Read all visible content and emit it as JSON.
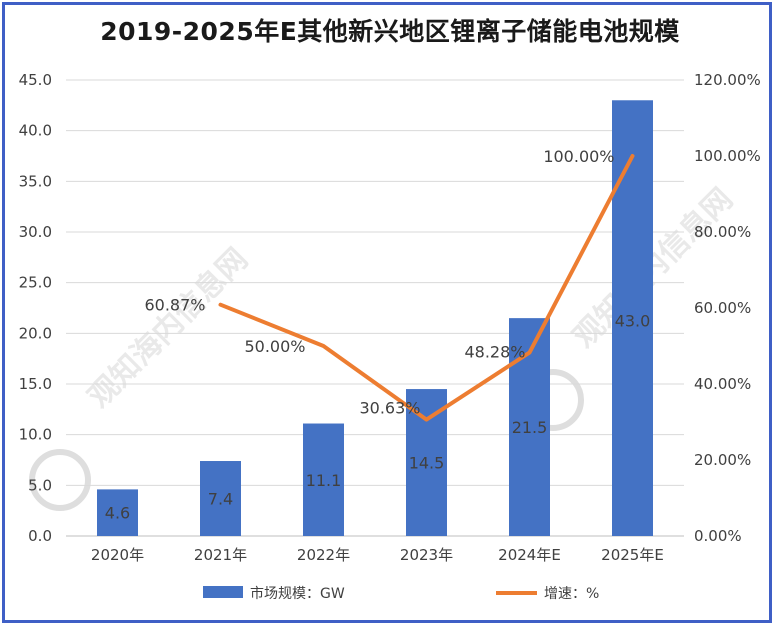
{
  "chart_data": {
    "type": "bar+line",
    "title": "2019-2025年E其他新兴地区锂离子储能电池规模",
    "categories": [
      "2020年",
      "2021年",
      "2022年",
      "2023年",
      "2024年E",
      "2025年E"
    ],
    "series": [
      {
        "name": "市场规模：GW",
        "type": "bar",
        "axis": "left",
        "values": [
          4.6,
          7.4,
          11.1,
          14.5,
          21.5,
          43.0
        ],
        "labels": [
          "4.6",
          "7.4",
          "11.1",
          "14.5",
          "21.5",
          "43.0"
        ],
        "color": "#4472c4"
      },
      {
        "name": "增速：%",
        "type": "line",
        "axis": "right",
        "values": [
          null,
          60.87,
          50.0,
          30.63,
          48.28,
          100.0
        ],
        "labels": [
          "",
          "60.87%",
          "50.00%",
          "30.63%",
          "48.28%",
          "100.00%"
        ],
        "color": "#ed7d31"
      }
    ],
    "y_left": {
      "min": 0,
      "max": 45,
      "step": 5,
      "tick_labels": [
        "0.0",
        "5.0",
        "10.0",
        "15.0",
        "20.0",
        "25.0",
        "30.0",
        "35.0",
        "40.0",
        "45.0"
      ]
    },
    "y_right": {
      "min": 0,
      "max": 120,
      "step": 20,
      "tick_labels": [
        "0.00%",
        "20.00%",
        "40.00%",
        "60.00%",
        "80.00%",
        "100.00%",
        "120.00%"
      ]
    },
    "grid": true,
    "legend_position": "bottom",
    "watermark": "观知海内信息网"
  }
}
